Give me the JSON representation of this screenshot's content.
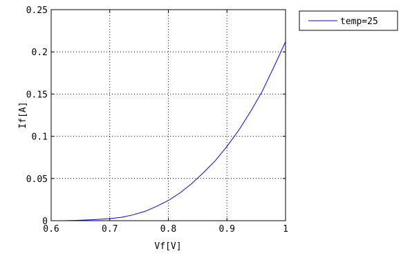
{
  "chart_data": {
    "type": "line",
    "xlabel": "Vf[V]",
    "ylabel": "If[A]",
    "xlim": [
      0.6,
      1.0
    ],
    "ylim": [
      0,
      0.25
    ],
    "xticks": [
      0.6,
      0.7,
      0.8,
      0.9,
      1.0
    ],
    "xtick_labels": [
      "0.6",
      "0.7",
      "0.8",
      "0.9",
      "1"
    ],
    "yticks": [
      0,
      0.05,
      0.1,
      0.15,
      0.2,
      0.25
    ],
    "ytick_labels": [
      "0",
      "0.05",
      "0.1",
      "0.15",
      "0.2",
      "0.25"
    ],
    "grid": true,
    "legend": "outside-top-right",
    "series": [
      {
        "name": "temp=25",
        "color": "#0000ff",
        "x": [
          0.6,
          0.62,
          0.64,
          0.66,
          0.68,
          0.7,
          0.72,
          0.74,
          0.76,
          0.78,
          0.8,
          0.82,
          0.84,
          0.86,
          0.88,
          0.9,
          0.92,
          0.94,
          0.96,
          0.98,
          1.0
        ],
        "y": [
          0.0,
          0.0,
          0.0003,
          0.0008,
          0.0015,
          0.0025,
          0.004,
          0.007,
          0.011,
          0.017,
          0.024,
          0.033,
          0.044,
          0.057,
          0.071,
          0.088,
          0.107,
          0.129,
          0.153,
          0.182,
          0.212
        ]
      }
    ]
  }
}
